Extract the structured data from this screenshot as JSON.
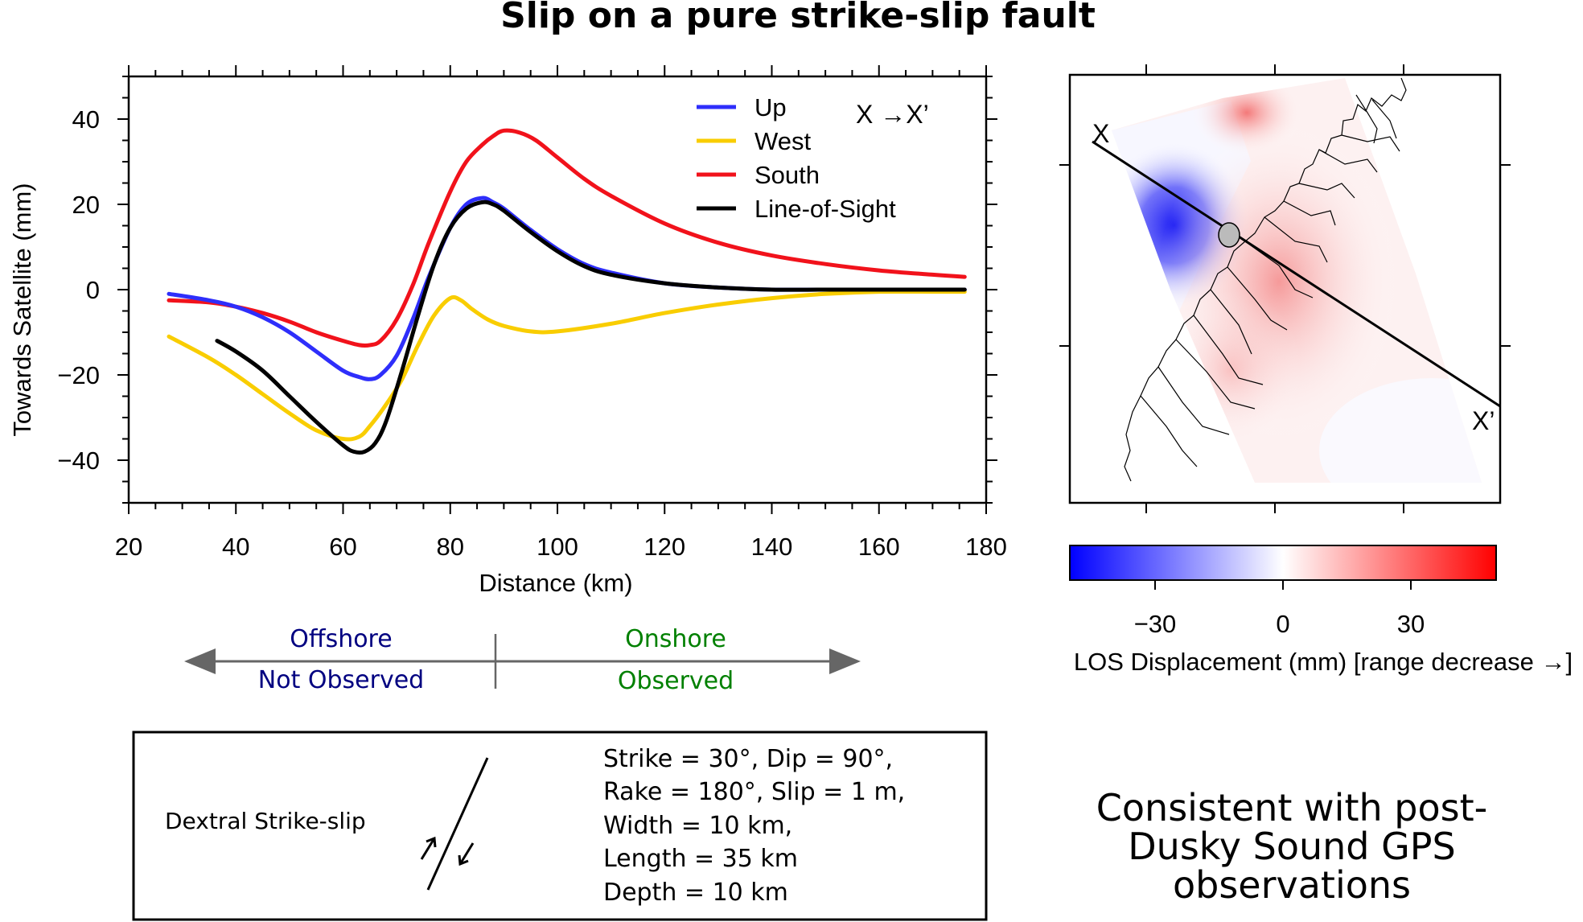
{
  "title": "Slip on a pure strike-slip fault",
  "chart_data": [
    {
      "type": "line",
      "xlabel": "Distance (km)",
      "ylabel": "Towards Satellite (mm)",
      "xlim": [
        20,
        180
      ],
      "ylim": [
        -50,
        50
      ],
      "xticks": [
        20,
        40,
        60,
        80,
        100,
        120,
        140,
        160,
        180
      ],
      "yticks": [
        -40,
        -20,
        0,
        20,
        40
      ],
      "xtick_labels": [
        "20",
        "40",
        "60",
        "80",
        "100",
        "120",
        "140",
        "160",
        "180"
      ],
      "ytick_labels": [
        "−40",
        "−20",
        "0",
        "20",
        "40"
      ],
      "profile_label": "X  →X’",
      "legend_position": "top-right",
      "grid": false,
      "series": [
        {
          "name": "Up",
          "color": "#2e2efb",
          "x": [
            27.5,
            35,
            40,
            45,
            50,
            55,
            60,
            63,
            65,
            67,
            70,
            73,
            76,
            80,
            83,
            86,
            88,
            90,
            95,
            100,
            105,
            110,
            120,
            130,
            140,
            150,
            160,
            170,
            176
          ],
          "y": [
            -1,
            -2.5,
            -4,
            -6.5,
            -10,
            -14.5,
            -19,
            -20.5,
            -21,
            -20,
            -15.5,
            -7,
            3,
            14.5,
            20,
            21.5,
            20.5,
            19,
            14,
            9.5,
            6,
            4,
            1.5,
            0.5,
            0,
            0,
            0,
            0,
            0
          ]
        },
        {
          "name": "West",
          "color": "#f9cd00",
          "x": [
            27.5,
            35,
            40,
            45,
            50,
            55,
            60,
            63,
            65,
            68,
            71,
            74,
            77,
            80,
            82,
            84,
            87,
            90,
            95,
            100,
            110,
            120,
            130,
            140,
            150,
            160,
            170,
            176
          ],
          "y": [
            -11,
            -16,
            -20,
            -24.5,
            -29,
            -33,
            -35,
            -34.5,
            -32,
            -27,
            -21,
            -13,
            -6,
            -2,
            -2.5,
            -4.5,
            -7,
            -8.5,
            -9.8,
            -9.8,
            -8,
            -5.5,
            -3.5,
            -2,
            -1,
            -0.5,
            -0.5,
            -0.5
          ]
        },
        {
          "name": "South",
          "color": "#f1121b",
          "x": [
            27.5,
            35,
            40,
            45,
            50,
            55,
            60,
            63,
            65,
            67,
            70,
            73,
            76,
            80,
            83,
            86,
            88,
            90,
            93,
            96,
            100,
            105,
            110,
            120,
            130,
            140,
            150,
            160,
            170,
            176
          ],
          "y": [
            -2.5,
            -3,
            -4,
            -5.5,
            -7.5,
            -10,
            -12,
            -13,
            -13,
            -12,
            -7,
            1,
            11,
            23,
            30,
            34,
            36,
            37.3,
            36.8,
            35,
            31,
            26,
            22,
            15.5,
            11,
            8,
            6,
            4.5,
            3.5,
            3
          ]
        },
        {
          "name": "Line-of-Sight",
          "color": "#000000",
          "x": [
            36.5,
            40,
            45,
            50,
            55,
            60,
            62,
            64,
            66,
            68,
            71,
            74,
            77,
            80,
            83,
            86,
            88,
            90,
            95,
            100,
            105,
            110,
            120,
            130,
            140,
            150,
            160,
            170,
            176
          ],
          "y": [
            -12,
            -14.5,
            -19,
            -25,
            -31,
            -36.5,
            -38,
            -38,
            -36,
            -31,
            -19,
            -6,
            6,
            14.5,
            19,
            20.5,
            20,
            18.5,
            13.5,
            9,
            5.5,
            3.5,
            1.5,
            0.5,
            0,
            0,
            0,
            0,
            0
          ]
        }
      ]
    },
    {
      "type": "heatmap",
      "colorbar": {
        "label": "LOS Displacement (mm) [range decrease →]",
        "tick_values": [
          -30,
          0,
          30
        ],
        "tick_labels": [
          "−30",
          "0",
          "30"
        ],
        "range": [
          -50,
          50
        ],
        "colors": [
          "#0000ff",
          "#ffffff",
          "#ff0000"
        ]
      },
      "profile_start_label": "X",
      "profile_end_label": "X’"
    }
  ],
  "coverage": {
    "offshore_label": "Offshore",
    "not_observed_label": "Not Observed",
    "onshore_label": "Onshore",
    "observed_label": "Observed",
    "offshore_color": "#000080",
    "onshore_color": "#008000",
    "arrow_color": "#666666"
  },
  "fault_box": {
    "fault_type": "Dextral Strike-slip",
    "params": [
      "Strike = 30°, Dip = 90°,",
      "Rake = 180°, Slip = 1 m,",
      "Width = 10 km,",
      "Length = 35 km",
      "Depth = 10 km"
    ]
  },
  "conclusion": [
    "Consistent with post-",
    "Dusky Sound GPS",
    "observations"
  ]
}
